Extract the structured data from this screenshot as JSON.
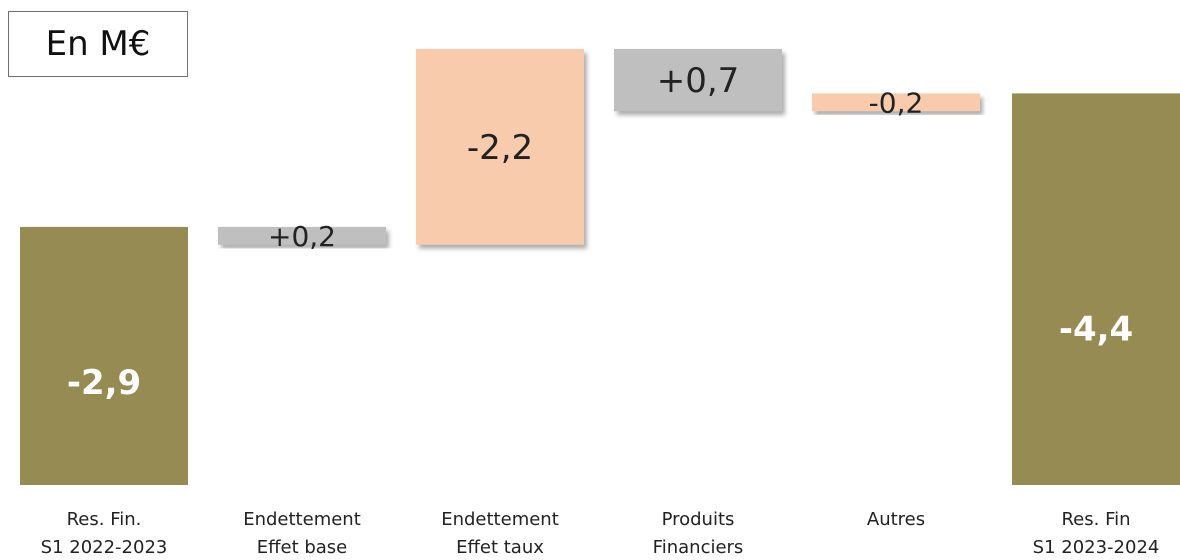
{
  "unit_label": "En M€",
  "colors": {
    "total": "#968b52",
    "negative": "#f8cbad",
    "positive": "#bfbfbf",
    "shadow": "#9a9a9a"
  },
  "chart_data": {
    "type": "bar",
    "subtype": "waterfall",
    "title": "",
    "unit": "En M€",
    "categories": [
      [
        "Res. Fin.",
        "S1 2022-2023"
      ],
      [
        "Endettement",
        "Effet base"
      ],
      [
        "Endettement",
        "Effet taux"
      ],
      [
        "Produits",
        "Financiers"
      ],
      [
        "Autres"
      ],
      [
        "Res. Fin",
        "S1 2023-2024"
      ]
    ],
    "values": [
      -2.9,
      0.2,
      -2.2,
      0.7,
      -0.2,
      -4.4
    ],
    "labels": [
      "-2,9",
      "+0,2",
      "-2,2",
      "+0,7",
      "-0,2",
      "-4,4"
    ],
    "kinds": [
      "total",
      "positive",
      "negative",
      "positive",
      "negative",
      "total"
    ],
    "grid": false,
    "legend": "none"
  }
}
